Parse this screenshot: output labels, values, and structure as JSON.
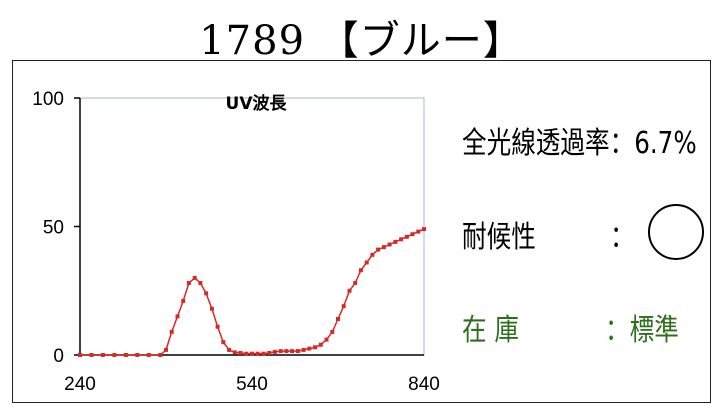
{
  "header": {
    "title": "1789 【ブルー】"
  },
  "info": {
    "transmittance_label": "全光線透過率：6.7%",
    "weather_label": "耐候性",
    "weather_colon": "：",
    "stock_label": "在 庫",
    "stock_value": "：標準"
  },
  "colors": {
    "series": "#d42a2a",
    "axis_box": "#a9b8c6",
    "stock_text": "#2e6e1e"
  },
  "chart_data": {
    "type": "line",
    "title": "UV波長",
    "xlabel": "",
    "ylabel": "",
    "xlim": [
      240,
      840
    ],
    "ylim": [
      0,
      100
    ],
    "xticks": [
      240,
      540,
      840
    ],
    "yticks": [
      0,
      50,
      100
    ],
    "grid": false,
    "series": [
      {
        "x": [
          240,
          260,
          280,
          300,
          320,
          340,
          360,
          380,
          390,
          400,
          410,
          420,
          430,
          440,
          450,
          460,
          470,
          480,
          490,
          500,
          510,
          520,
          530,
          540,
          550,
          560,
          570,
          580,
          590,
          600,
          610,
          620,
          630,
          640,
          650,
          660,
          670,
          680,
          690,
          700,
          710,
          720,
          730,
          740,
          750,
          760,
          770,
          780,
          790,
          800,
          810,
          820,
          830,
          840
        ],
        "values": [
          0,
          0,
          0,
          0,
          0,
          0,
          0,
          0,
          2,
          9,
          15,
          21,
          28,
          30,
          28,
          24,
          18,
          11,
          5,
          2,
          1,
          0.8,
          0.5,
          0.5,
          0.5,
          0.5,
          0.8,
          1.2,
          1.5,
          1.5,
          1.5,
          1.5,
          2,
          2.5,
          3,
          4,
          6,
          9,
          14,
          19,
          25,
          28,
          33,
          36,
          39,
          41,
          42,
          43,
          44,
          45,
          46,
          47,
          48,
          49
        ]
      }
    ]
  }
}
